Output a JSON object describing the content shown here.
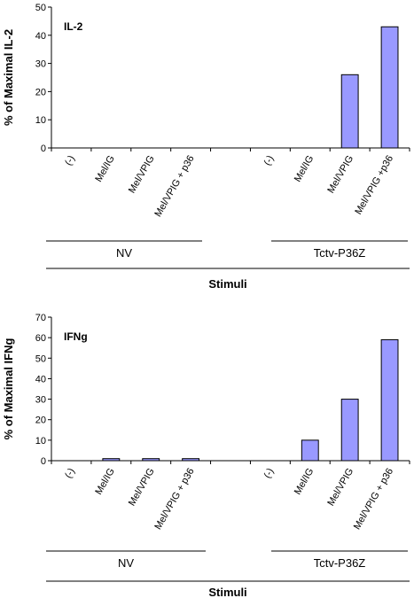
{
  "chart_data": [
    {
      "type": "bar",
      "panel_label": "IL-2",
      "ylabel": "% of Maximal IL-2",
      "xlabel": "Stimuli",
      "ylim": [
        0,
        50
      ],
      "yticks": [
        0,
        10,
        20,
        30,
        40,
        50
      ],
      "categories": [
        "(-)",
        "Mel/IG",
        "Mel/VPIG",
        "Mel/VPIG + p36",
        "(-)",
        "Mel/IG",
        "Mel/VPIG",
        "Mel/VPIG +p36"
      ],
      "values": [
        0,
        0,
        0,
        0,
        0,
        0,
        26,
        43
      ],
      "groups": [
        {
          "label": "NV",
          "categories": [
            0,
            1,
            2,
            3
          ]
        },
        {
          "label": "Tctv-P36Z",
          "categories": [
            4,
            5,
            6,
            7
          ]
        }
      ],
      "bar_color": "#9999ff"
    },
    {
      "type": "bar",
      "panel_label": "IFNg",
      "ylabel": "% of Maximal IFNg",
      "xlabel": "Stimuli",
      "ylim": [
        0,
        70
      ],
      "yticks": [
        0,
        10,
        20,
        30,
        40,
        50,
        60,
        70
      ],
      "categories": [
        "(-)",
        "Mel/IG",
        "Mel/VPIG",
        "Mel/VPIG + p36",
        "(-)",
        "Mel/IG",
        "Mel/VPIG",
        "Mel/VPIG + p36"
      ],
      "values": [
        0,
        1,
        1,
        1,
        0,
        10,
        30,
        59
      ],
      "groups": [
        {
          "label": "NV",
          "categories": [
            0,
            1,
            2,
            3
          ]
        },
        {
          "label": "Tctv-P36Z",
          "categories": [
            4,
            5,
            6,
            7
          ]
        }
      ],
      "bar_color": "#9999ff"
    }
  ]
}
